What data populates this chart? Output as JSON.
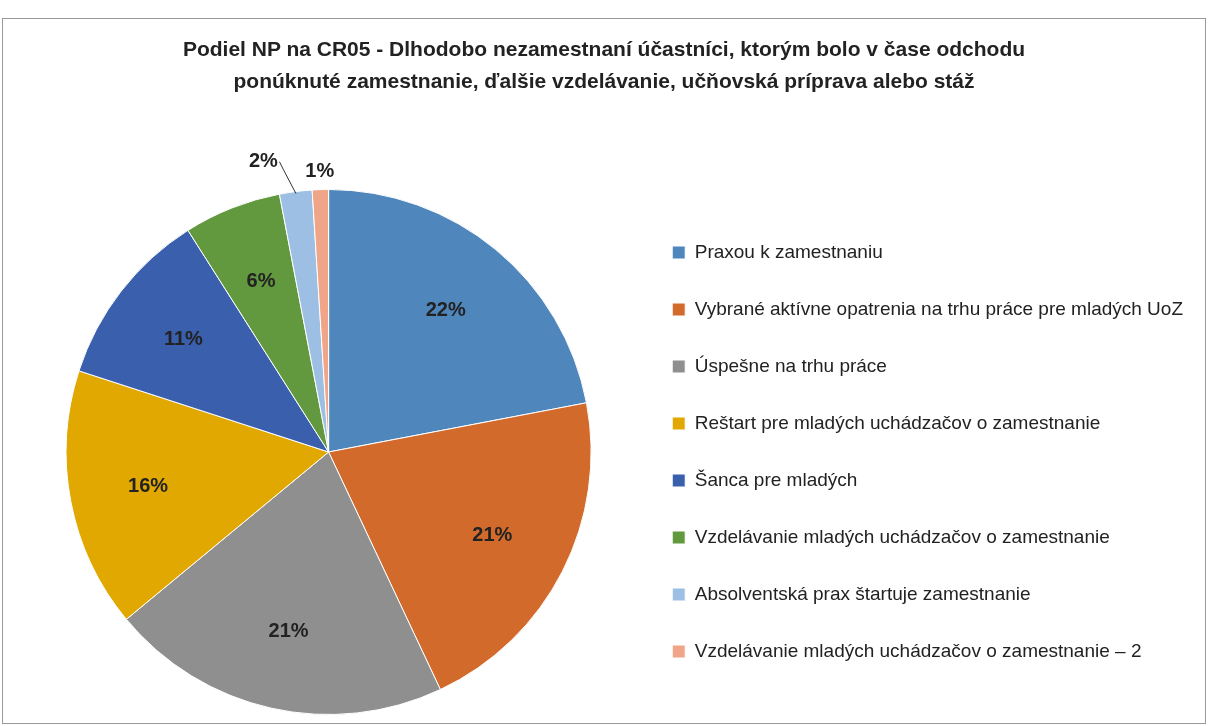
{
  "chart_data": {
    "type": "pie",
    "title": "Podiel NP na CR05 - Dlhodobo nezamestnaní účastníci, ktorým bolo v čase odchodu ponúknuté zamestnanie, ďalšie vzdelávanie, učňovská príprava alebo stáž",
    "categories": [
      "Praxou k zamestnaniu",
      "Vybrané aktívne opatrenia na trhu práce pre mladých UoZ",
      "Úspešne na trhu práce",
      "Reštart pre mladých uchádzačov o zamestnanie",
      "Šanca pre mladých",
      "Vzdelávanie mladých uchádzačov o zamestnanie",
      "Absolventská prax štartuje zamestnanie",
      "Vzdelávanie mladých uchádzačov o zamestnanie – 2"
    ],
    "values": [
      22,
      21,
      21,
      16,
      11,
      6,
      2,
      1
    ],
    "colors": [
      "#4f87bd",
      "#d26a2b",
      "#8f8f8f",
      "#e0a800",
      "#3a5fad",
      "#62993e",
      "#9dbfe3",
      "#f0a488"
    ],
    "value_labels": [
      "22%",
      "21%",
      "21%",
      "16%",
      "11%",
      "6%",
      "2%",
      "1%"
    ],
    "legend": "right"
  }
}
